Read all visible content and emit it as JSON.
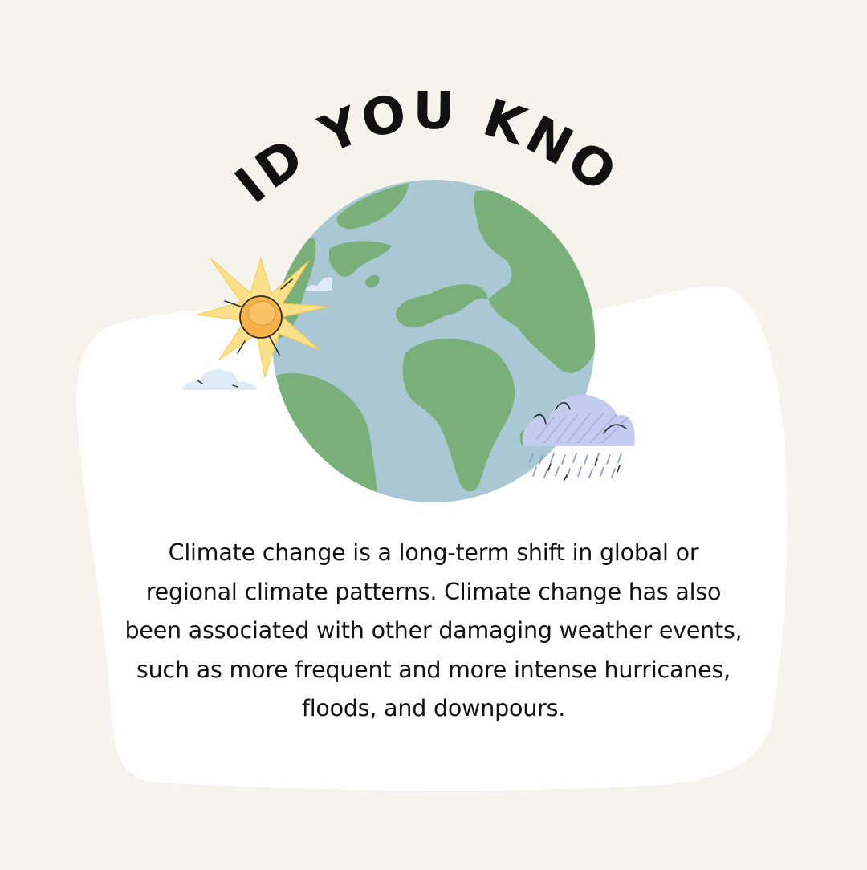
{
  "heading": "DID YOU KNOW",
  "body_text": "Climate change is a long-term shift in global or regional climate patterns. Climate change has also been associated with other damaging weather events, such as more frequent and more intense hurricanes, floods, and downpours.",
  "icons": {
    "globe": "earth-globe-icon",
    "sun": "sun-icon",
    "small_cloud": "cloud-icon",
    "rain_cloud": "rain-cloud-icon"
  },
  "colors": {
    "background": "#f6f3ec",
    "panel": "#ffffff",
    "ocean": "#a9c8d3",
    "land": "#79b07a",
    "sun_rays": "#fbe08a",
    "sun_core": "#f6b24a",
    "cloud": "#dfeaf7",
    "rain_cloud": "#c3ccee",
    "text": "#111111"
  }
}
